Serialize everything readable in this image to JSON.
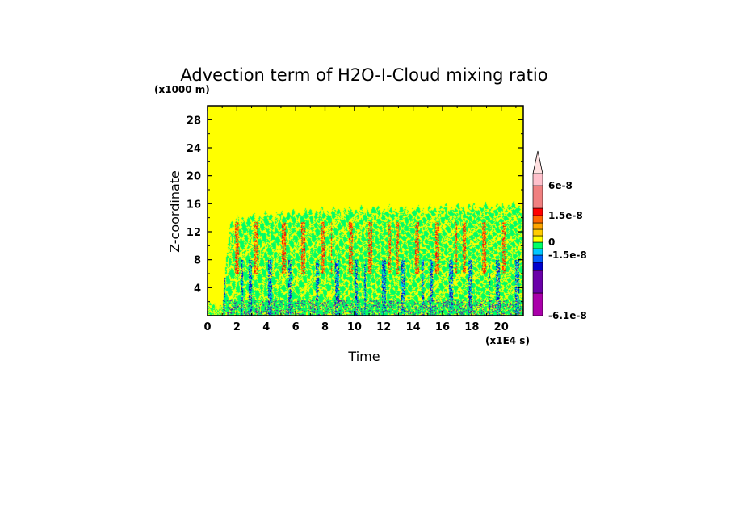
{
  "chart_data": {
    "type": "heatmap",
    "title": "Advection term of H2O-I-Cloud mixing ratio",
    "xlabel": "Time",
    "ylabel": "Z-coordinate",
    "x_unit": "(x1E4 s)",
    "y_unit": "(x1000 m)",
    "xlim": [
      0,
      21.5
    ],
    "ylim": [
      0,
      30
    ],
    "x_ticks": [
      "0",
      "2",
      "4",
      "6",
      "8",
      "10",
      "12",
      "14",
      "16",
      "18",
      "20"
    ],
    "x_tick_values": [
      0,
      2,
      4,
      6,
      8,
      10,
      12,
      14,
      16,
      18,
      20
    ],
    "y_ticks": [
      "4",
      "8",
      "12",
      "16",
      "20",
      "24",
      "28"
    ],
    "y_tick_values": [
      4,
      8,
      12,
      16,
      20,
      24,
      28
    ],
    "background_value_color": "#ffff00",
    "cloud_top_km": [
      [
        1.0,
        1.5
      ],
      [
        1.5,
        13.5
      ],
      [
        3,
        14.2
      ],
      [
        6,
        14.8
      ],
      [
        10,
        15.2
      ],
      [
        14,
        15.3
      ],
      [
        18,
        15.6
      ],
      [
        21.5,
        15.8
      ]
    ],
    "colorbar": {
      "colors": [
        "#aa00aa",
        "#6a00a8",
        "#0000cc",
        "#0060ff",
        "#00c8ff",
        "#00ff66",
        "#ffff00",
        "#ffcc00",
        "#ffa500",
        "#ff6600",
        "#ff0000",
        "#f08080",
        "#ffc0cb"
      ],
      "labels": [
        {
          "text": "-6.1e-8",
          "value": -6.1e-08
        },
        {
          "text": "-1.5e-8",
          "value": -1.5e-08
        },
        {
          "text": "0",
          "value": 0
        },
        {
          "text": "1.5e-8",
          "value": 1.5e-08
        },
        {
          "text": "6e-8",
          "value": 6e-08
        }
      ]
    }
  }
}
